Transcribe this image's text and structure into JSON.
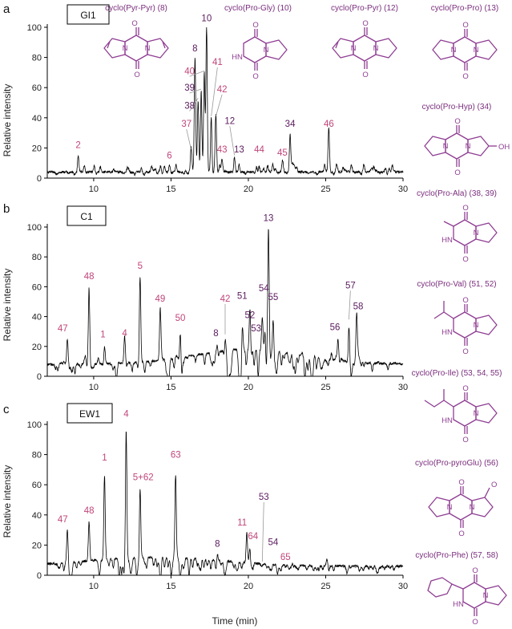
{
  "colors": {
    "label_pink": "#c0457a",
    "label_purple": "#5a1a5e",
    "structure": "#8e3d92",
    "trace": "#000000"
  },
  "axis": {
    "xlabel": "Time (min)",
    "ylabel": "Relative intensity"
  },
  "chart_data": [
    {
      "type": "line",
      "panel": "a",
      "title": "GI1",
      "xlabel": "",
      "ylabel": "Relative intensity",
      "xlim": [
        7,
        30
      ],
      "ylim": [
        0,
        100
      ],
      "xticks": [
        10,
        15,
        20,
        25,
        30
      ],
      "yticks": [
        0,
        20,
        40,
        60,
        80,
        100
      ],
      "baseline": 4,
      "peaks": [
        {
          "x": 9.0,
          "y": 15,
          "label": "2",
          "color": "pink",
          "lx": 9.0,
          "ly": 20
        },
        {
          "x": 14.9,
          "y": 8,
          "label": "6",
          "color": "pink",
          "lx": 14.9,
          "ly": 13
        },
        {
          "x": 16.3,
          "y": 18,
          "label": "37",
          "color": "pink",
          "lx": 16.0,
          "ly": 34,
          "leader": true
        },
        {
          "x": 16.55,
          "y": 79,
          "label": "8",
          "color": "purple",
          "lx": 16.55,
          "ly": 84
        },
        {
          "x": 16.75,
          "y": 52,
          "label": "38",
          "color": "purple",
          "lx": 16.2,
          "ly": 46,
          "leader": true
        },
        {
          "x": 16.95,
          "y": 58,
          "label": "39",
          "color": "purple",
          "lx": 16.2,
          "ly": 58,
          "leader": true
        },
        {
          "x": 17.15,
          "y": 70,
          "label": "40",
          "color": "pink",
          "lx": 16.2,
          "ly": 69,
          "leader": true
        },
        {
          "x": 17.3,
          "y": 100,
          "label": "10",
          "color": "purple",
          "lx": 17.3,
          "ly": 104
        },
        {
          "x": 17.6,
          "y": 40,
          "label": "41",
          "color": "pink",
          "lx": 18.0,
          "ly": 75,
          "leader": true
        },
        {
          "x": 17.9,
          "y": 40,
          "label": "42",
          "color": "pink",
          "lx": 18.3,
          "ly": 57,
          "leader": true
        },
        {
          "x": 18.3,
          "y": 12,
          "label": "43",
          "color": "pink",
          "lx": 18.3,
          "ly": 17
        },
        {
          "x": 19.1,
          "y": 14,
          "label": "12",
          "color": "purple",
          "lx": 18.8,
          "ly": 36,
          "leader": true
        },
        {
          "x": 19.4,
          "y": 9,
          "label": "13",
          "color": "purple",
          "lx": 19.4,
          "ly": 17
        },
        {
          "x": 20.7,
          "y": 8,
          "label": "44",
          "color": "pink",
          "lx": 20.7,
          "ly": 17
        },
        {
          "x": 22.2,
          "y": 8,
          "label": "45",
          "color": "pink",
          "lx": 22.2,
          "ly": 15
        },
        {
          "x": 22.7,
          "y": 29,
          "label": "34",
          "color": "purple",
          "lx": 22.7,
          "ly": 34
        },
        {
          "x": 25.2,
          "y": 29,
          "label": "46",
          "color": "pink",
          "lx": 25.2,
          "ly": 34
        }
      ]
    },
    {
      "type": "line",
      "panel": "b",
      "title": "C1",
      "xlabel": "",
      "ylabel": "Relative intensity",
      "xlim": [
        7,
        30
      ],
      "ylim": [
        0,
        100
      ],
      "xticks": [
        10,
        15,
        20,
        25,
        30
      ],
      "yticks": [
        0,
        20,
        40,
        60,
        80,
        100
      ],
      "baseline": 8,
      "peaks": [
        {
          "x": 8.3,
          "y": 25,
          "label": "47",
          "color": "pink",
          "lx": 8.0,
          "ly": 30
        },
        {
          "x": 9.7,
          "y": 60,
          "label": "48",
          "color": "pink",
          "lx": 9.7,
          "ly": 65
        },
        {
          "x": 10.7,
          "y": 21,
          "label": "1",
          "color": "pink",
          "lx": 10.6,
          "ly": 26
        },
        {
          "x": 12.0,
          "y": 22,
          "label": "4",
          "color": "pink",
          "lx": 12.0,
          "ly": 27
        },
        {
          "x": 13.0,
          "y": 67,
          "label": "5",
          "color": "pink",
          "lx": 13.0,
          "ly": 72
        },
        {
          "x": 14.3,
          "y": 45,
          "label": "49",
          "color": "pink",
          "lx": 14.3,
          "ly": 50
        },
        {
          "x": 15.6,
          "y": 32,
          "label": "50",
          "color": "pink",
          "lx": 15.6,
          "ly": 37
        },
        {
          "x": 18.0,
          "y": 22,
          "label": "8",
          "color": "purple",
          "lx": 17.9,
          "ly": 27
        },
        {
          "x": 18.5,
          "y": 27,
          "label": "42",
          "color": "pink",
          "lx": 18.5,
          "ly": 50,
          "leader": true
        },
        {
          "x": 19.6,
          "y": 45,
          "label": "51",
          "color": "purple",
          "lx": 19.6,
          "ly": 52
        },
        {
          "x": 20.1,
          "y": 48,
          "label": "52",
          "color": "purple",
          "lx": 20.1,
          "ly": 39
        },
        {
          "x": 20.9,
          "y": 40,
          "label": "53",
          "color": "purple",
          "lx": 20.5,
          "ly": 30
        },
        {
          "x": 21.1,
          "y": 50,
          "label": "54",
          "color": "purple",
          "lx": 21.0,
          "ly": 57
        },
        {
          "x": 21.3,
          "y": 100,
          "label": "13",
          "color": "purple",
          "lx": 21.3,
          "ly": 104
        },
        {
          "x": 21.6,
          "y": 44,
          "label": "55",
          "color": "purple",
          "lx": 21.6,
          "ly": 51
        },
        {
          "x": 25.8,
          "y": 26,
          "label": "56",
          "color": "purple",
          "lx": 25.6,
          "ly": 31
        },
        {
          "x": 26.5,
          "y": 37,
          "label": "57",
          "color": "purple",
          "lx": 26.6,
          "ly": 59,
          "leader": true
        },
        {
          "x": 27.0,
          "y": 40,
          "label": "58",
          "color": "purple",
          "lx": 27.1,
          "ly": 45
        }
      ]
    },
    {
      "type": "line",
      "panel": "c",
      "title": "EW1",
      "xlabel": "Time (min)",
      "ylabel": "Relative intensity",
      "xlim": [
        7,
        30
      ],
      "ylim": [
        0,
        100
      ],
      "xticks": [
        10,
        15,
        20,
        25,
        30
      ],
      "yticks": [
        0,
        20,
        40,
        60,
        80,
        100
      ],
      "baseline": 6,
      "peaks": [
        {
          "x": 8.3,
          "y": 30,
          "label": "47",
          "color": "pink",
          "lx": 8.0,
          "ly": 35
        },
        {
          "x": 9.7,
          "y": 36,
          "label": "48",
          "color": "pink",
          "lx": 9.7,
          "ly": 41
        },
        {
          "x": 10.7,
          "y": 71,
          "label": "1",
          "color": "pink",
          "lx": 10.7,
          "ly": 76
        },
        {
          "x": 12.1,
          "y": 100,
          "label": "4",
          "color": "pink",
          "lx": 12.1,
          "ly": 105
        },
        {
          "x": 13.0,
          "y": 58,
          "label": "5+62",
          "color": "pink",
          "lx": 13.2,
          "ly": 63
        },
        {
          "x": 15.3,
          "y": 73,
          "label": "63",
          "color": "pink",
          "lx": 15.3,
          "ly": 78
        },
        {
          "x": 18.0,
          "y": 14,
          "label": "8",
          "color": "purple",
          "lx": 18.0,
          "ly": 19
        },
        {
          "x": 19.9,
          "y": 28,
          "label": "11",
          "color": "pink",
          "lx": 19.6,
          "ly": 33
        },
        {
          "x": 20.1,
          "y": 20,
          "label": "64",
          "color": "pink",
          "lx": 20.3,
          "ly": 24
        },
        {
          "x": 20.9,
          "y": 8,
          "label": "53",
          "color": "purple",
          "lx": 21.0,
          "ly": 50,
          "leader": true
        },
        {
          "x": 21.3,
          "y": 7,
          "label": "54",
          "color": "purple",
          "lx": 21.6,
          "ly": 20
        },
        {
          "x": 22.4,
          "y": 5,
          "label": "65",
          "color": "pink",
          "lx": 22.4,
          "ly": 10
        }
      ]
    }
  ],
  "structures": [
    {
      "name": "cyclo(Pyr-Pyr) (8)",
      "mol": "pyrpyr"
    },
    {
      "name": "cyclo(Pro-Gly) (10)",
      "mol": "progly"
    },
    {
      "name": "cyclo(Pro-Pyr) (12)",
      "mol": "propyr"
    },
    {
      "name": "cyclo(Pro-Pro) (13)",
      "mol": "propro"
    },
    {
      "name": "cyclo(Pro-Hyp) (34)",
      "mol": "prohyp"
    },
    {
      "name": "cyclo(Pro-Ala) (38, 39)",
      "mol": "proala"
    },
    {
      "name": "cyclo(Pro-Val) (51, 52)",
      "mol": "proval"
    },
    {
      "name": "cyclo(Pro-Ile) (53, 54, 55)",
      "mol": "proile"
    },
    {
      "name": "cyclo(Pro-pyroGlu) (56)",
      "mol": "propyroglu"
    },
    {
      "name": "cyclo(Pro-Phe) (57, 58)",
      "mol": "prophe"
    }
  ],
  "atoms": {
    "N": "N",
    "O": "O",
    "HN": "HN",
    "OH": "OH"
  }
}
